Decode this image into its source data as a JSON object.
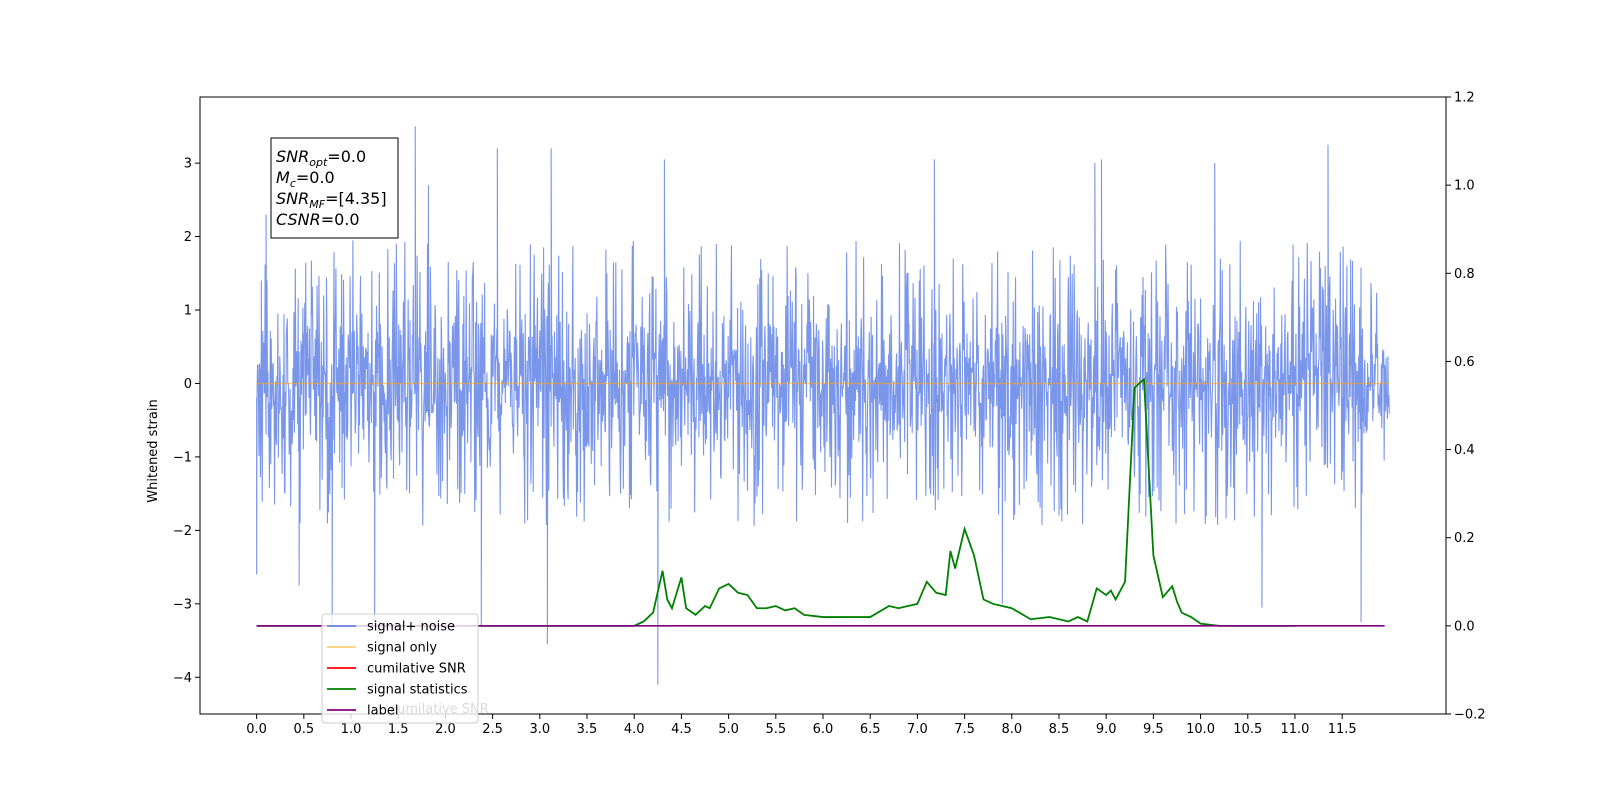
{
  "chart_data": {
    "type": "line",
    "ylabel": "Whitened strain",
    "xlim": [
      -0.6,
      12.6
    ],
    "ylim_left": [
      -4.5,
      3.9
    ],
    "ylim_right": [
      -0.2,
      1.2
    ],
    "x_ticks": [
      "0.0",
      "0.5",
      "1.0",
      "1.5",
      "2.0",
      "2.5",
      "3.0",
      "3.5",
      "4.0",
      "4.5",
      "5.0",
      "5.5",
      "6.0",
      "6.5",
      "7.0",
      "7.5",
      "8.0",
      "8.5",
      "9.0",
      "9.5",
      "10.0",
      "10.5",
      "11.0",
      "11.5"
    ],
    "y_ticks_left": [
      "−4",
      "−3",
      "−2",
      "−1",
      "0",
      "1",
      "2",
      "3"
    ],
    "y_ticks_right": [
      "−0.2",
      "0.0",
      "0.2",
      "0.4",
      "0.6",
      "0.8",
      "1.0",
      "1.2"
    ],
    "annotation": {
      "lines": [
        {
          "sym": "SNR",
          "sub": "opt",
          "val": "=0.0"
        },
        {
          "sym": "M",
          "sub": "c",
          "val": "=0.0"
        },
        {
          "sym": "SNR",
          "sub": "MF",
          "val": "=[4.35]"
        },
        {
          "sym": "CSNR",
          "sub": "",
          "val": "=0.0"
        }
      ]
    },
    "legend": {
      "placement": "lower-left",
      "entries": [
        {
          "label": "signal+ noise",
          "color": "#4169e1"
        },
        {
          "label": "signal only",
          "color": "#ffa500"
        },
        {
          "label": "cumilative SNR",
          "color": "#ff0000"
        },
        {
          "label": "signal statistics",
          "color": "#008000"
        },
        {
          "label": "label",
          "color": "#800080"
        }
      ],
      "hidden_text": "cumilative SNR"
    },
    "series": [
      {
        "name": "signal+ noise",
        "color": "#4169e1",
        "axis": "left",
        "kind": "noise",
        "x_range": [
          0.0,
          12.0
        ],
        "typical_envelope": [
          -1.6,
          1.7
        ],
        "extremes": [
          {
            "x": 0.0,
            "y": -2.6
          },
          {
            "x": 0.05,
            "y": 1.4
          },
          {
            "x": 0.1,
            "y": 2.3
          },
          {
            "x": 0.45,
            "y": -2.75
          },
          {
            "x": 0.8,
            "y": -3.3
          },
          {
            "x": 1.25,
            "y": -3.3
          },
          {
            "x": 1.68,
            "y": 3.5
          },
          {
            "x": 1.82,
            "y": 2.7
          },
          {
            "x": 2.38,
            "y": -3.3
          },
          {
            "x": 2.55,
            "y": 3.2
          },
          {
            "x": 3.08,
            "y": -3.55
          },
          {
            "x": 3.12,
            "y": 3.2
          },
          {
            "x": 4.25,
            "y": -4.1
          },
          {
            "x": 4.32,
            "y": 3.05
          },
          {
            "x": 7.18,
            "y": 3.05
          },
          {
            "x": 7.9,
            "y": -3.0
          },
          {
            "x": 8.88,
            "y": 3.0
          },
          {
            "x": 8.95,
            "y": 3.05
          },
          {
            "x": 10.15,
            "y": 3.0
          },
          {
            "x": 10.65,
            "y": -3.05
          },
          {
            "x": 11.35,
            "y": 3.25
          },
          {
            "x": 11.7,
            "y": -3.25
          }
        ]
      },
      {
        "name": "signal only",
        "color": "#ffa500",
        "axis": "left",
        "x": [
          0.0,
          12.0
        ],
        "y": [
          0.0,
          0.0
        ]
      },
      {
        "name": "signal statistics",
        "color": "#008000",
        "axis": "right",
        "x": [
          0.0,
          4.0,
          4.1,
          4.2,
          4.3,
          4.35,
          4.4,
          4.5,
          4.55,
          4.65,
          4.75,
          4.8,
          4.9,
          5.0,
          5.1,
          5.2,
          5.3,
          5.4,
          5.5,
          5.6,
          5.7,
          5.8,
          6.0,
          6.5,
          6.7,
          6.8,
          6.9,
          7.0,
          7.1,
          7.2,
          7.3,
          7.35,
          7.4,
          7.5,
          7.6,
          7.7,
          7.8,
          8.0,
          8.2,
          8.4,
          8.6,
          8.7,
          8.8,
          8.9,
          9.0,
          9.05,
          9.1,
          9.2,
          9.3,
          9.4,
          9.5,
          9.6,
          9.7,
          9.75,
          9.8,
          9.9,
          10.0,
          10.2,
          10.5,
          11.0
        ],
        "y": [
          0.0,
          0.0,
          0.01,
          0.03,
          0.125,
          0.06,
          0.04,
          0.11,
          0.04,
          0.025,
          0.045,
          0.04,
          0.085,
          0.095,
          0.075,
          0.07,
          0.04,
          0.04,
          0.045,
          0.035,
          0.04,
          0.025,
          0.02,
          0.02,
          0.045,
          0.04,
          0.045,
          0.05,
          0.1,
          0.075,
          0.07,
          0.17,
          0.13,
          0.22,
          0.16,
          0.06,
          0.05,
          0.04,
          0.015,
          0.02,
          0.01,
          0.02,
          0.01,
          0.085,
          0.07,
          0.08,
          0.06,
          0.1,
          0.54,
          0.56,
          0.16,
          0.065,
          0.09,
          0.055,
          0.03,
          0.02,
          0.005,
          0.0,
          0.0,
          0.0
        ]
      },
      {
        "name": "label",
        "color": "#800080",
        "axis": "right",
        "x": [
          0.0,
          11.95
        ],
        "y": [
          0.0,
          0.0
        ]
      }
    ]
  }
}
